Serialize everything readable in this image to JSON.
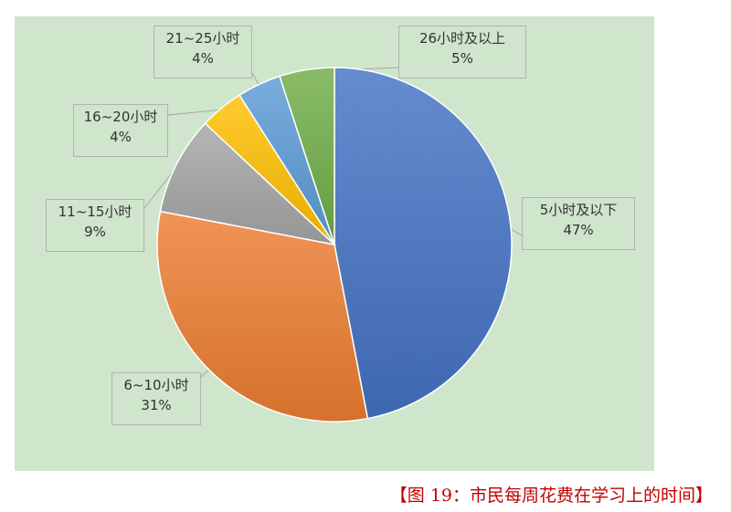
{
  "chart_data": {
    "type": "pie",
    "slices": [
      {
        "label": "5小时及以下",
        "value": 47,
        "value_label": "47%",
        "color": "#4472c4"
      },
      {
        "label": "6~10小时",
        "value": 31,
        "value_label": "31%",
        "color": "#ed7d31"
      },
      {
        "label": "11~15小时",
        "value": 9,
        "value_label": "9%",
        "color": "#a5a5a5"
      },
      {
        "label": "16~20小时",
        "value": 4,
        "value_label": "4%",
        "color": "#ffc000"
      },
      {
        "label": "21~25小时",
        "value": 4,
        "value_label": "4%",
        "color": "#5b9bd5"
      },
      {
        "label": "26小时及以上",
        "value": 5,
        "value_label": "5%",
        "color": "#70ad47"
      }
    ],
    "start_position": "top",
    "direction": "clockwise",
    "legend": "none",
    "data_labels": "callouts",
    "background_color": "#cfe5cc"
  },
  "caption": "【图 19：市民每周花费在学习上的时间】"
}
